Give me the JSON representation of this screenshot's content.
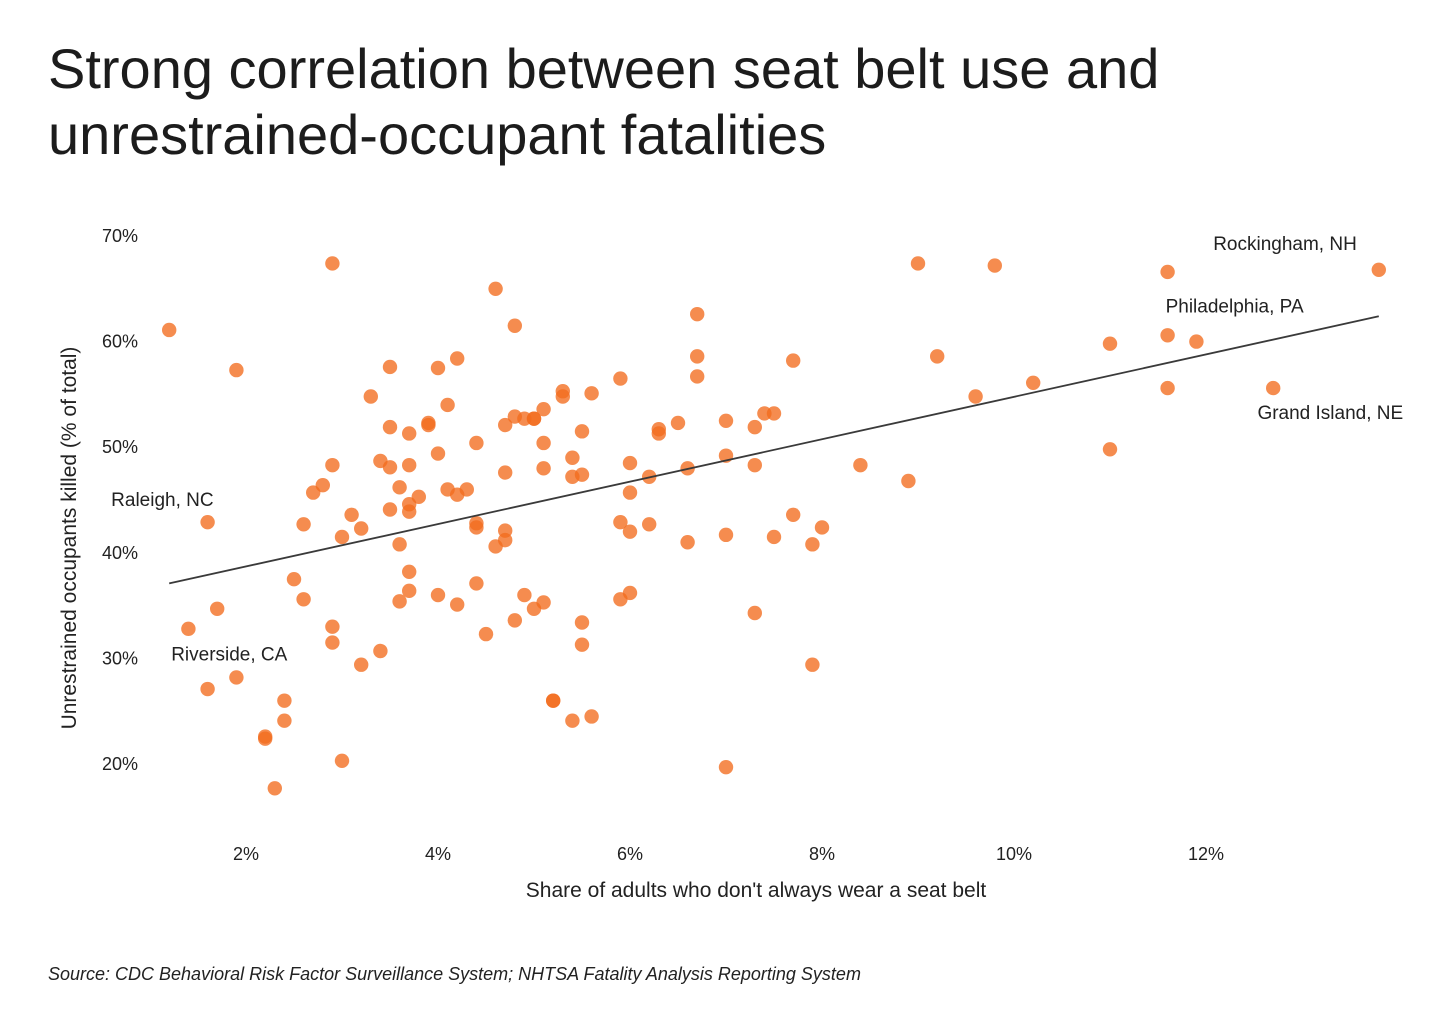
{
  "title": {
    "line1": "Strong correlation between seat belt use and",
    "line2": "unrestrained-occupant fatalities"
  },
  "source": "Source: CDC Behavioral Risk Factor Surveillance System; NHTSA Fatality Analysis Reporting System",
  "colors": {
    "dot": "#f26b1d",
    "trend": "#3a3a3a",
    "text": "#222222"
  },
  "chart_data": {
    "type": "scatter",
    "title": "Strong correlation between seat belt use and unrestrained-occupant fatalities",
    "xlabel": "Share of adults who don't always wear a seat belt",
    "ylabel": "Unrestrained occupants killed (% of total)",
    "xlim": [
      1.0,
      14.0
    ],
    "ylim": [
      15,
      72
    ],
    "grid": false,
    "x_ticks": [
      2,
      4,
      6,
      8,
      10,
      12
    ],
    "x_tick_labels": [
      "2%",
      "4%",
      "6%",
      "8%",
      "10%",
      "12%"
    ],
    "y_ticks": [
      20,
      30,
      40,
      50,
      60,
      70
    ],
    "y_tick_labels": [
      "20%",
      "30%",
      "40%",
      "50%",
      "60%",
      "70%"
    ],
    "trendline": {
      "x": [
        1.2,
        13.8
      ],
      "y": [
        37.1,
        62.4
      ]
    },
    "annotations": [
      {
        "text": "Rockingham, NH",
        "x": 13.8,
        "y": 66.8
      },
      {
        "text": "Philadelphia, PA",
        "x": 11.6,
        "y": 60.6
      },
      {
        "text": "Grand Island, NE",
        "x": 12.7,
        "y": 55.6
      },
      {
        "text": "Raleigh, NC",
        "x": 1.6,
        "y": 42.9
      },
      {
        "text": "Riverside, CA",
        "x": 2.2,
        "y": 22.6
      }
    ],
    "series": [
      {
        "points": [
          [
            1.2,
            61.1
          ],
          [
            1.4,
            32.8
          ],
          [
            1.6,
            42.9
          ],
          [
            1.6,
            27.1
          ],
          [
            1.7,
            34.7
          ],
          [
            1.9,
            57.3
          ],
          [
            1.9,
            28.2
          ],
          [
            2.2,
            22.6
          ],
          [
            2.2,
            22.4
          ],
          [
            2.3,
            17.7
          ],
          [
            2.4,
            26.0
          ],
          [
            2.4,
            24.1
          ],
          [
            2.5,
            37.5
          ],
          [
            2.6,
            42.7
          ],
          [
            2.6,
            35.6
          ],
          [
            2.7,
            45.7
          ],
          [
            2.8,
            46.4
          ],
          [
            2.9,
            67.4
          ],
          [
            2.9,
            48.3
          ],
          [
            2.9,
            33.0
          ],
          [
            2.9,
            31.5
          ],
          [
            3.0,
            41.5
          ],
          [
            3.0,
            20.3
          ],
          [
            3.1,
            43.6
          ],
          [
            3.2,
            42.3
          ],
          [
            3.2,
            29.4
          ],
          [
            3.3,
            54.8
          ],
          [
            3.4,
            48.7
          ],
          [
            3.4,
            30.7
          ],
          [
            3.5,
            57.6
          ],
          [
            3.5,
            51.9
          ],
          [
            3.5,
            48.1
          ],
          [
            3.5,
            44.1
          ],
          [
            3.6,
            46.2
          ],
          [
            3.6,
            40.8
          ],
          [
            3.6,
            35.4
          ],
          [
            3.7,
            51.3
          ],
          [
            3.7,
            48.3
          ],
          [
            3.7,
            44.6
          ],
          [
            3.7,
            43.9
          ],
          [
            3.7,
            38.2
          ],
          [
            3.7,
            36.4
          ],
          [
            3.8,
            45.3
          ],
          [
            3.9,
            52.1
          ],
          [
            3.9,
            52.3
          ],
          [
            4.0,
            57.5
          ],
          [
            4.0,
            49.4
          ],
          [
            4.0,
            36.0
          ],
          [
            4.1,
            54.0
          ],
          [
            4.1,
            46.0
          ],
          [
            4.2,
            58.4
          ],
          [
            4.2,
            45.5
          ],
          [
            4.2,
            35.1
          ],
          [
            4.3,
            46.0
          ],
          [
            4.4,
            50.4
          ],
          [
            4.4,
            42.8
          ],
          [
            4.4,
            42.4
          ],
          [
            4.4,
            37.1
          ],
          [
            4.5,
            32.3
          ],
          [
            4.6,
            65.0
          ],
          [
            4.6,
            40.6
          ],
          [
            4.7,
            52.1
          ],
          [
            4.7,
            47.6
          ],
          [
            4.7,
            42.1
          ],
          [
            4.7,
            41.2
          ],
          [
            4.8,
            61.5
          ],
          [
            4.8,
            52.9
          ],
          [
            4.8,
            33.6
          ],
          [
            4.9,
            52.7
          ],
          [
            4.9,
            36.0
          ],
          [
            5.0,
            52.7
          ],
          [
            5.0,
            52.7
          ],
          [
            5.0,
            34.7
          ],
          [
            5.1,
            53.6
          ],
          [
            5.1,
            50.4
          ],
          [
            5.1,
            48.0
          ],
          [
            5.1,
            35.3
          ],
          [
            5.2,
            26.0
          ],
          [
            5.2,
            26.0
          ],
          [
            5.3,
            55.3
          ],
          [
            5.3,
            54.8
          ],
          [
            5.4,
            49.0
          ],
          [
            5.4,
            47.2
          ],
          [
            5.4,
            24.1
          ],
          [
            5.5,
            51.5
          ],
          [
            5.5,
            47.4
          ],
          [
            5.5,
            33.4
          ],
          [
            5.5,
            31.3
          ],
          [
            5.6,
            55.1
          ],
          [
            5.6,
            24.5
          ],
          [
            5.9,
            56.5
          ],
          [
            5.9,
            42.9
          ],
          [
            5.9,
            35.6
          ],
          [
            6.0,
            48.5
          ],
          [
            6.0,
            45.7
          ],
          [
            6.0,
            42.0
          ],
          [
            6.0,
            36.2
          ],
          [
            6.2,
            47.2
          ],
          [
            6.2,
            42.7
          ],
          [
            6.3,
            51.7
          ],
          [
            6.3,
            51.3
          ],
          [
            6.5,
            52.3
          ],
          [
            6.6,
            48.0
          ],
          [
            6.6,
            41.0
          ],
          [
            6.7,
            62.6
          ],
          [
            6.7,
            58.6
          ],
          [
            6.7,
            56.7
          ],
          [
            7.0,
            52.5
          ],
          [
            7.0,
            49.2
          ],
          [
            7.0,
            41.7
          ],
          [
            7.0,
            19.7
          ],
          [
            7.3,
            51.9
          ],
          [
            7.3,
            48.3
          ],
          [
            7.3,
            34.3
          ],
          [
            7.4,
            53.2
          ],
          [
            7.5,
            53.2
          ],
          [
            7.5,
            41.5
          ],
          [
            7.7,
            58.2
          ],
          [
            7.7,
            43.6
          ],
          [
            7.9,
            40.8
          ],
          [
            7.9,
            29.4
          ],
          [
            8.0,
            42.4
          ],
          [
            8.4,
            48.3
          ],
          [
            8.9,
            46.8
          ],
          [
            9.0,
            67.4
          ],
          [
            9.2,
            58.6
          ],
          [
            9.6,
            54.8
          ],
          [
            9.8,
            67.2
          ],
          [
            10.2,
            56.1
          ],
          [
            11.0,
            59.8
          ],
          [
            11.0,
            49.8
          ],
          [
            11.6,
            66.6
          ],
          [
            11.6,
            60.6
          ],
          [
            11.6,
            55.6
          ],
          [
            11.9,
            60.0
          ],
          [
            12.7,
            55.6
          ],
          [
            13.8,
            66.8
          ]
        ]
      }
    ]
  }
}
